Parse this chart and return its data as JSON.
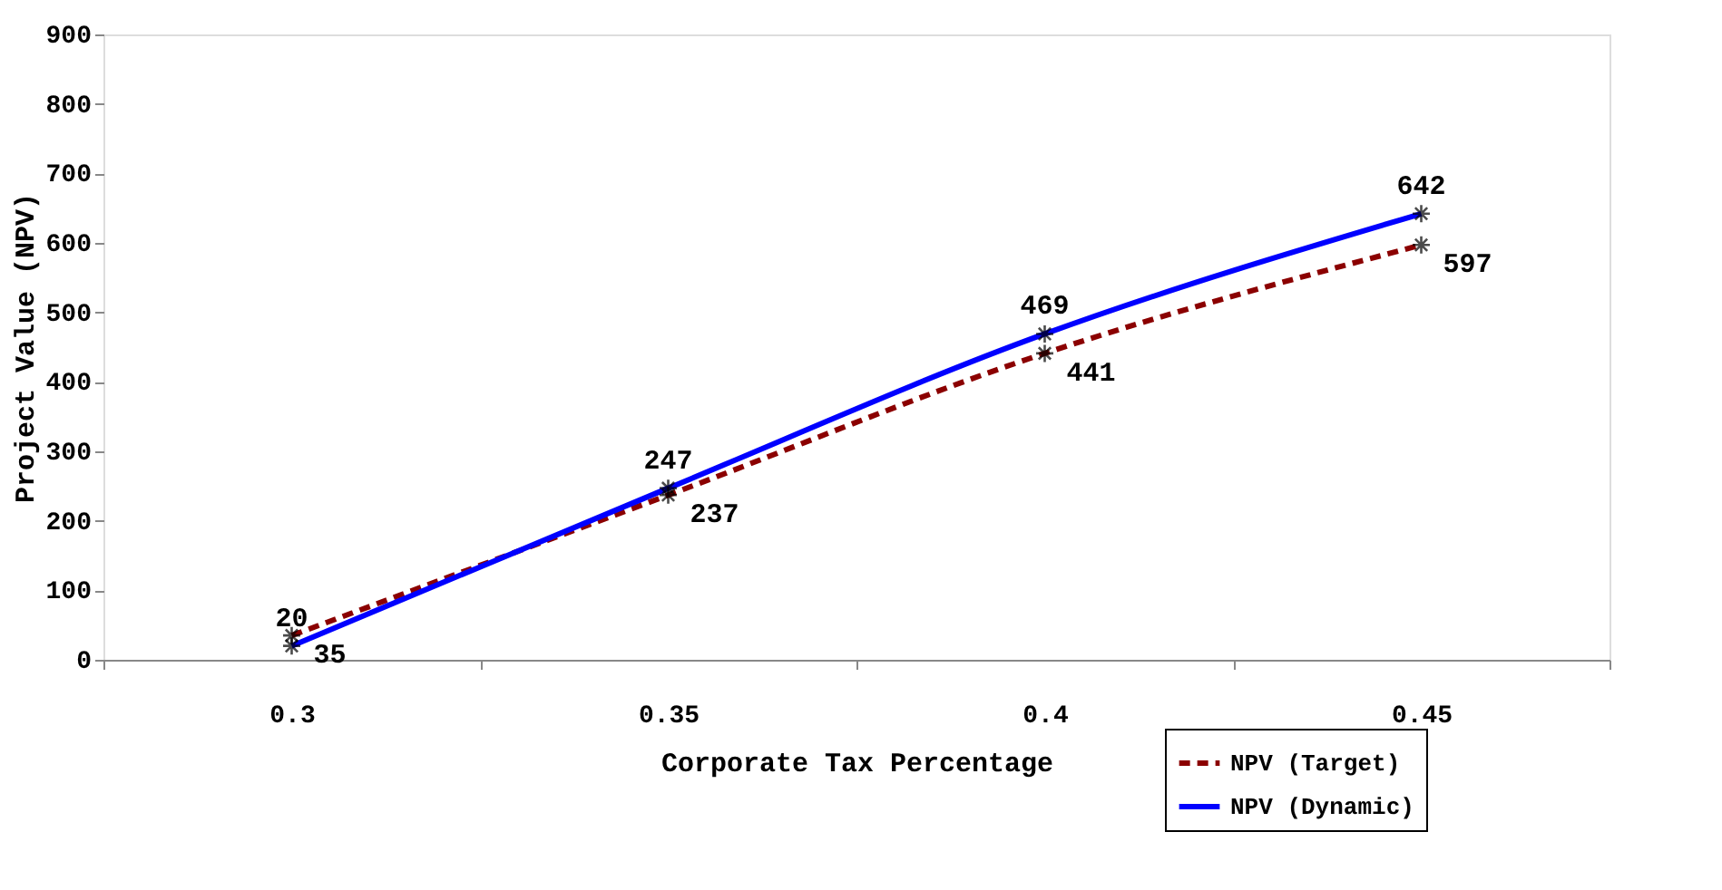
{
  "chart_data": {
    "type": "line",
    "xlabel": "Corporate Tax Percentage",
    "ylabel": "Project Value (NPV)",
    "categories": [
      "0.3",
      "0.35",
      "0.4",
      "0.45"
    ],
    "series": [
      {
        "name": "NPV (Target)",
        "color": "#8b0000",
        "line_style": "dashed",
        "values": [
          35,
          237,
          441,
          597
        ]
      },
      {
        "name": "NPV (Dynamic)",
        "color": "#0000ff",
        "line_style": "solid",
        "values": [
          20,
          247,
          469,
          642
        ]
      }
    ],
    "ylim": [
      0,
      900
    ],
    "yticks": [
      0,
      100,
      200,
      300,
      400,
      500,
      600,
      700,
      800,
      900
    ],
    "marker": "cross",
    "data_labels": true,
    "grid": false,
    "legend": "bottom right"
  }
}
